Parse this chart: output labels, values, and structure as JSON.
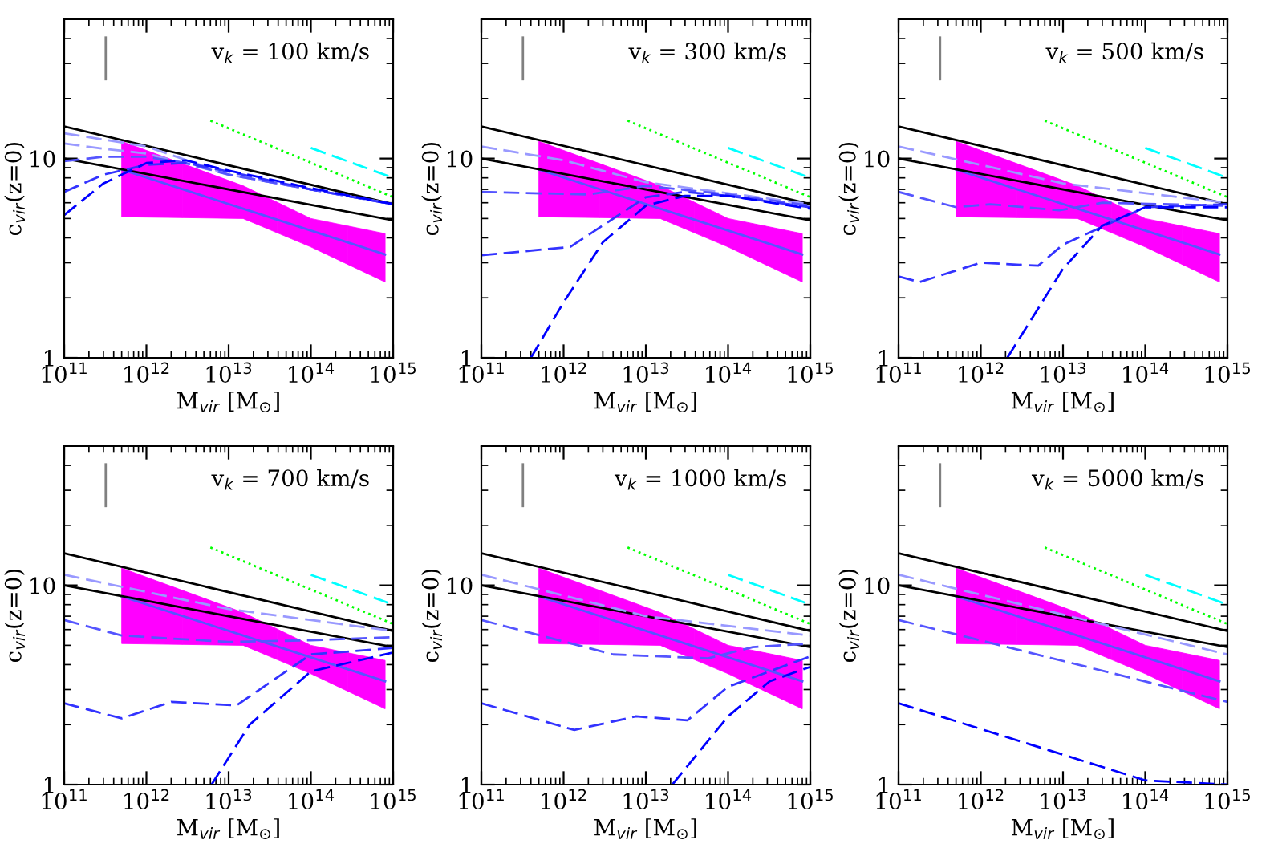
{
  "chart_data": [
    {
      "type": "line",
      "annotations": [
        "v$_{k}$ = 100 km/s"
      ],
      "xlabel": "M$_{vir}$ [M$_{⊙}$]",
      "ylabel": "c$_{vir}$(z=0)",
      "log": "xy",
      "xlim": [
        100000000000.0,
        1000000000000000.0
      ],
      "ylim": [
        1,
        50
      ],
      "xticks": [
        {
          "value": 100000000000.0,
          "label": "10$^{11}$"
        },
        {
          "value": 1000000000000.0,
          "label": "10$^{12}$"
        },
        {
          "value": 10000000000000.0,
          "label": "10$^{13}$"
        },
        {
          "value": 100000000000000.0,
          "label": "10$^{14}$"
        },
        {
          "value": 1000000000000000.0,
          "label": "10$^{15}$"
        }
      ],
      "yticks": [
        1,
        10
      ],
      "series": [
        {
          "type": "line",
          "color": "#5555ff",
          "colors": [
            "#ff00ff",
            "#ff00ff",
            "#ff00ff",
            "#ff00ff"
          ],
          "line_style": "solid",
          "x": [
            500000000000.0,
            15000000000000.0,
            100000000000000.0,
            800000000000000.0
          ],
          "values": [
            8.8,
            5.6,
            4.35,
            3.3
          ],
          "lower": [
            5.1,
            5.0,
            3.6,
            2.4
          ],
          "upper": [
            12.2,
            7.3,
            5.0,
            4.2
          ]
        },
        {
          "type": "line",
          "color": "#000000",
          "line_style": "solid",
          "x": [
            100000000000.0,
            1000000000000000.0
          ],
          "values": [
            14.5,
            5.9
          ]
        },
        {
          "type": "line",
          "color": "#000000",
          "line_style": "solid",
          "x": [
            100000000000.0,
            1000000000000000.0
          ],
          "values": [
            10,
            4.9
          ]
        },
        {
          "type": "line",
          "color": "#00ff00",
          "line_style": "dotted",
          "x": [
            6000000000000.0,
            1000000000000000.0
          ],
          "values": [
            15.5,
            6.4
          ]
        },
        {
          "type": "line",
          "color": "#00ffff",
          "line_style": "dashed",
          "x": [
            100000000000000.0,
            1000000000000000.0
          ],
          "values": [
            11.3,
            8.0
          ]
        },
        {
          "type": "line",
          "color": "#9999ff",
          "line_style": "dashed",
          "x": [
            100000000000.0,
            1000000000000.0,
            10000000000000.0,
            100000000000000.0,
            1000000000000000.0
          ],
          "values": [
            13.4,
            11.5,
            8.3,
            7.0,
            5.9
          ]
        },
        {
          "type": "line",
          "color": "#9999ff",
          "line_style": "dashed",
          "x": [
            100000000000.0,
            300000000000.0,
            1000000000000.0,
            10000000000000.0,
            100000000000000.0,
            1000000000000000.0
          ],
          "values": [
            11.9,
            11.2,
            10.6,
            8.3,
            7.0,
            5.9
          ]
        },
        {
          "type": "line",
          "color": "#5555ff",
          "line_style": "dashed",
          "x": [
            100000000000.0,
            300000000000.0,
            1000000000000.0,
            3000000000000.0,
            10000000000000.0,
            100000000000000.0,
            1000000000000000.0
          ],
          "values": [
            9.7,
            10.2,
            10.2,
            9.5,
            8.3,
            7.0,
            5.9
          ]
        },
        {
          "type": "line",
          "color": "#3333ff",
          "line_style": "dashed",
          "x": [
            100000000000.0,
            300000000000.0,
            1000000000000.0,
            3000000000000.0,
            10000000000000.0,
            100000000000000.0,
            1000000000000000.0
          ],
          "values": [
            6.8,
            8.3,
            9.3,
            9.5,
            8.6,
            7.0,
            5.9
          ]
        },
        {
          "type": "line",
          "color": "#0000ff",
          "line_style": "dashed",
          "x": [
            100000000000.0,
            300000000000.0,
            1000000000000.0,
            3000000000000.0,
            10000000000000.0,
            100000000000000.0,
            1000000000000000.0
          ],
          "values": [
            5.2,
            7.5,
            9.5,
            9.8,
            8.7,
            7.1,
            5.9
          ]
        },
        {
          "type": "line",
          "color": "#808080",
          "line_style": "solid",
          "x": [
            320000000000.0,
            320000000000.0
          ],
          "values": [
            25,
            40.5
          ]
        }
      ]
    },
    {
      "type": "line",
      "annotations": [
        "v$_{k}$ = 300 km/s"
      ],
      "xlabel": "M$_{vir}$ [M$_{⊙}$]",
      "ylabel": "c$_{vir}$(z=0)",
      "log": "xy",
      "xlim": [
        100000000000.0,
        1000000000000000.0
      ],
      "ylim": [
        1,
        50
      ],
      "xticks": [
        {
          "value": 100000000000.0,
          "label": "10$^{11}$"
        },
        {
          "value": 1000000000000.0,
          "label": "10$^{12}$"
        },
        {
          "value": 10000000000000.0,
          "label": "10$^{13}$"
        },
        {
          "value": 100000000000000.0,
          "label": "10$^{14}$"
        },
        {
          "value": 1000000000000000.0,
          "label": "10$^{15}$"
        }
      ],
      "yticks": [
        1,
        10
      ],
      "series": [
        {
          "type": "line",
          "color": "#5555ff",
          "colors": [
            "#ff00ff",
            "#ff00ff",
            "#ff00ff",
            "#ff00ff"
          ],
          "line_style": "solid",
          "x": [
            500000000000.0,
            15000000000000.0,
            100000000000000.0,
            800000000000000.0
          ],
          "values": [
            8.8,
            5.6,
            4.35,
            3.3
          ],
          "lower": [
            5.1,
            5.0,
            3.6,
            2.4
          ],
          "upper": [
            12.2,
            7.3,
            5.0,
            4.2
          ]
        },
        {
          "type": "line",
          "color": "#000000",
          "line_style": "solid",
          "x": [
            100000000000.0,
            1000000000000000.0
          ],
          "values": [
            14.5,
            5.9
          ]
        },
        {
          "type": "line",
          "color": "#000000",
          "line_style": "solid",
          "x": [
            100000000000.0,
            1000000000000000.0
          ],
          "values": [
            10,
            4.9
          ]
        },
        {
          "type": "line",
          "color": "#00ff00",
          "line_style": "dotted",
          "x": [
            6000000000000.0,
            1000000000000000.0
          ],
          "values": [
            15.5,
            6.4
          ]
        },
        {
          "type": "line",
          "color": "#00ffff",
          "line_style": "dashed",
          "x": [
            100000000000000.0,
            1000000000000000.0
          ],
          "values": [
            11.3,
            8.0
          ]
        },
        {
          "type": "line",
          "color": "#9999ff",
          "line_style": "dashed",
          "x": [
            100000000000.0,
            1000000000000.0,
            10000000000000.0,
            100000000000000.0,
            1000000000000000.0
          ],
          "values": [
            11.5,
            9.8,
            7.6,
            6.7,
            5.9
          ]
        },
        {
          "type": "line",
          "color": "#5555ff",
          "line_style": "dashed",
          "x": [
            100000000000.0,
            2000000000000.0,
            10000000000000.0,
            100000000000000.0,
            1000000000000000.0
          ],
          "values": [
            6.8,
            6.6,
            7.3,
            6.6,
            5.8
          ]
        },
        {
          "type": "line",
          "color": "#3333ff",
          "line_style": "dashed",
          "x": [
            100000000000.0,
            1200000000000.0,
            10000000000000.0,
            30000000000000.0,
            100000000000000.0,
            1000000000000000.0
          ],
          "values": [
            3.27,
            3.6,
            6.4,
            6.8,
            6.5,
            5.7
          ]
        },
        {
          "type": "line",
          "color": "#0000ff",
          "line_style": "dashed",
          "x": [
            400000000000.0,
            1000000000000.0,
            3000000000000.0,
            10000000000000.0,
            30000000000000.0,
            100000000000000.0,
            1000000000000000.0
          ],
          "values": [
            1.0,
            1.9,
            3.8,
            5.8,
            6.5,
            6.5,
            5.6
          ]
        },
        {
          "type": "line",
          "color": "#808080",
          "line_style": "solid",
          "x": [
            320000000000.0,
            320000000000.0
          ],
          "values": [
            25,
            40.5
          ]
        }
      ]
    },
    {
      "type": "line",
      "annotations": [
        "v$_{k}$ = 500 km/s"
      ],
      "xlabel": "M$_{vir}$ [M$_{⊙}$]",
      "ylabel": "c$_{vir}$(z=0)",
      "log": "xy",
      "xlim": [
        100000000000.0,
        1000000000000000.0
      ],
      "ylim": [
        1,
        50
      ],
      "xticks": [
        {
          "value": 100000000000.0,
          "label": "10$^{11}$"
        },
        {
          "value": 1000000000000.0,
          "label": "10$^{12}$"
        },
        {
          "value": 10000000000000.0,
          "label": "10$^{13}$"
        },
        {
          "value": 100000000000000.0,
          "label": "10$^{14}$"
        },
        {
          "value": 1000000000000000.0,
          "label": "10$^{15}$"
        }
      ],
      "yticks": [
        1,
        10
      ],
      "series": [
        {
          "type": "line",
          "color": "#5555ff",
          "colors": [
            "#ff00ff",
            "#ff00ff",
            "#ff00ff",
            "#ff00ff"
          ],
          "line_style": "solid",
          "x": [
            500000000000.0,
            15000000000000.0,
            100000000000000.0,
            800000000000000.0
          ],
          "values": [
            8.8,
            5.6,
            4.35,
            3.3
          ],
          "lower": [
            5.1,
            5.0,
            3.6,
            2.4
          ],
          "upper": [
            12.2,
            7.3,
            5.0,
            4.2
          ]
        },
        {
          "type": "line",
          "color": "#000000",
          "line_style": "solid",
          "x": [
            100000000000.0,
            1000000000000000.0
          ],
          "values": [
            14.5,
            5.9
          ]
        },
        {
          "type": "line",
          "color": "#000000",
          "line_style": "solid",
          "x": [
            100000000000.0,
            1000000000000000.0
          ],
          "values": [
            10,
            4.9
          ]
        },
        {
          "type": "line",
          "color": "#00ff00",
          "line_style": "dotted",
          "x": [
            6000000000000.0,
            1000000000000000.0
          ],
          "values": [
            15.5,
            6.4
          ]
        },
        {
          "type": "line",
          "color": "#00ffff",
          "line_style": "dashed",
          "x": [
            100000000000000.0,
            1000000000000000.0
          ],
          "values": [
            11.3,
            8.0
          ]
        },
        {
          "type": "line",
          "color": "#9999ff",
          "line_style": "dashed",
          "x": [
            100000000000.0,
            10000000000000.0,
            1000000000000000.0
          ],
          "values": [
            11.5,
            7.5,
            6.0
          ]
        },
        {
          "type": "line",
          "color": "#5555ff",
          "line_style": "dashed",
          "x": [
            100000000000.0,
            500000000000.0,
            1300000000000.0,
            9000000000000.0,
            30000000000000.0,
            1000000000000000.0
          ],
          "values": [
            6.8,
            5.7,
            5.9,
            5.5,
            6.0,
            5.8
          ]
        },
        {
          "type": "line",
          "color": "#3333ff",
          "line_style": "dashed",
          "x": [
            100000000000.0,
            180000000000.0,
            1000000000000.0,
            5000000000000.0,
            10000000000000.0,
            100000000000000.0,
            1000000000000000.0
          ],
          "values": [
            2.56,
            2.4,
            3.0,
            2.9,
            3.7,
            5.7,
            5.9
          ]
        },
        {
          "type": "line",
          "color": "#0000ff",
          "line_style": "dashed",
          "x": [
            2100000000000.0,
            10000000000000.0,
            30000000000000.0,
            100000000000000.0,
            1000000000000000.0
          ],
          "values": [
            1.0,
            2.8,
            4.6,
            5.7,
            5.7
          ]
        },
        {
          "type": "line",
          "color": "#808080",
          "line_style": "solid",
          "x": [
            320000000000.0,
            320000000000.0
          ],
          "values": [
            25,
            40.5
          ]
        }
      ]
    },
    {
      "type": "line",
      "annotations": [
        "v$_{k}$ = 700 km/s"
      ],
      "xlabel": "M$_{vir}$ [M$_{⊙}$]",
      "ylabel": "c$_{vir}$(z=0)",
      "log": "xy",
      "xlim": [
        100000000000.0,
        1000000000000000.0
      ],
      "ylim": [
        1,
        50
      ],
      "xticks": [
        {
          "value": 100000000000.0,
          "label": "10$^{11}$"
        },
        {
          "value": 1000000000000.0,
          "label": "10$^{12}$"
        },
        {
          "value": 10000000000000.0,
          "label": "10$^{13}$"
        },
        {
          "value": 100000000000000.0,
          "label": "10$^{14}$"
        },
        {
          "value": 1000000000000000.0,
          "label": "10$^{15}$"
        }
      ],
      "yticks": [
        1,
        10
      ],
      "series": [
        {
          "type": "line",
          "color": "#5555ff",
          "colors": [
            "#ff00ff",
            "#ff00ff",
            "#ff00ff",
            "#ff00ff"
          ],
          "line_style": "solid",
          "x": [
            500000000000.0,
            15000000000000.0,
            100000000000000.0,
            800000000000000.0
          ],
          "values": [
            8.8,
            5.6,
            4.35,
            3.3
          ],
          "lower": [
            5.1,
            5.0,
            3.6,
            2.4
          ],
          "upper": [
            12.2,
            7.3,
            5.0,
            4.2
          ]
        },
        {
          "type": "line",
          "color": "#000000",
          "line_style": "solid",
          "x": [
            100000000000.0,
            1000000000000000.0
          ],
          "values": [
            14.5,
            5.9
          ]
        },
        {
          "type": "line",
          "color": "#000000",
          "line_style": "solid",
          "x": [
            100000000000.0,
            1000000000000000.0
          ],
          "values": [
            10,
            4.9
          ]
        },
        {
          "type": "line",
          "color": "#00ff00",
          "line_style": "dotted",
          "x": [
            6000000000000.0,
            1000000000000000.0
          ],
          "values": [
            15.5,
            6.4
          ]
        },
        {
          "type": "line",
          "color": "#00ffff",
          "line_style": "dashed",
          "x": [
            100000000000000.0,
            1000000000000000.0
          ],
          "values": [
            11.3,
            8.0
          ]
        },
        {
          "type": "line",
          "color": "#9999ff",
          "line_style": "dashed",
          "x": [
            100000000000.0,
            10000000000000.0,
            1000000000000000.0
          ],
          "values": [
            11.3,
            7.6,
            5.9
          ]
        },
        {
          "type": "line",
          "color": "#5555ff",
          "line_style": "dashed",
          "x": [
            100000000000.0,
            500000000000.0,
            10000000000000.0,
            100000000000000.0,
            1000000000000000.0
          ],
          "values": [
            6.7,
            5.6,
            5.2,
            5.3,
            5.5
          ]
        },
        {
          "type": "line",
          "color": "#3333ff",
          "line_style": "dashed",
          "x": [
            100000000000.0,
            500000000000.0,
            2000000000000.0,
            12500000000000.0,
            100000000000000.0,
            1000000000000000.0
          ],
          "values": [
            2.56,
            2.15,
            2.6,
            2.5,
            4.5,
            4.85
          ]
        },
        {
          "type": "line",
          "color": "#0000ff",
          "line_style": "dashed",
          "x": [
            6200000000000.0,
            18000000000000.0,
            100000000000000.0,
            1000000000000000.0
          ],
          "values": [
            1.0,
            2.0,
            3.7,
            4.6
          ]
        },
        {
          "type": "line",
          "color": "#808080",
          "line_style": "solid",
          "x": [
            320000000000.0,
            320000000000.0
          ],
          "values": [
            25,
            40.5
          ]
        }
      ]
    },
    {
      "type": "line",
      "annotations": [
        "v$_{k}$ = 1000 km/s"
      ],
      "xlabel": "M$_{vir}$ [M$_{⊙}$]",
      "ylabel": "c$_{vir}$(z=0)",
      "log": "xy",
      "xlim": [
        100000000000.0,
        1000000000000000.0
      ],
      "ylim": [
        1,
        50
      ],
      "xticks": [
        {
          "value": 100000000000.0,
          "label": "10$^{11}$"
        },
        {
          "value": 1000000000000.0,
          "label": "10$^{12}$"
        },
        {
          "value": 10000000000000.0,
          "label": "10$^{13}$"
        },
        {
          "value": 100000000000000.0,
          "label": "10$^{14}$"
        },
        {
          "value": 1000000000000000.0,
          "label": "10$^{15}$"
        }
      ],
      "yticks": [
        1,
        10
      ],
      "series": [
        {
          "type": "line",
          "color": "#5555ff",
          "colors": [
            "#ff00ff",
            "#ff00ff",
            "#ff00ff",
            "#ff00ff"
          ],
          "line_style": "solid",
          "x": [
            500000000000.0,
            15000000000000.0,
            100000000000000.0,
            800000000000000.0
          ],
          "values": [
            8.8,
            5.6,
            4.35,
            3.3
          ],
          "lower": [
            5.1,
            5.0,
            3.6,
            2.4
          ],
          "upper": [
            12.2,
            7.3,
            5.0,
            4.2
          ]
        },
        {
          "type": "line",
          "color": "#000000",
          "line_style": "solid",
          "x": [
            100000000000.0,
            1000000000000000.0
          ],
          "values": [
            14.5,
            5.9
          ]
        },
        {
          "type": "line",
          "color": "#000000",
          "line_style": "solid",
          "x": [
            100000000000.0,
            1000000000000000.0
          ],
          "values": [
            10,
            4.9
          ]
        },
        {
          "type": "line",
          "color": "#00ff00",
          "line_style": "dotted",
          "x": [
            6000000000000.0,
            1000000000000000.0
          ],
          "values": [
            15.5,
            6.4
          ]
        },
        {
          "type": "line",
          "color": "#00ffff",
          "line_style": "dashed",
          "x": [
            100000000000000.0,
            1000000000000000.0
          ],
          "values": [
            11.3,
            8.0
          ]
        },
        {
          "type": "line",
          "color": "#9999ff",
          "line_style": "dashed",
          "x": [
            100000000000.0,
            10000000000000.0,
            1000000000000000.0
          ],
          "values": [
            11.3,
            7.0,
            5.6
          ]
        },
        {
          "type": "line",
          "color": "#5555ff",
          "line_style": "dashed",
          "x": [
            100000000000.0,
            4000000000000.0,
            57000000000000.0,
            200000000000000.0,
            1000000000000000.0
          ],
          "values": [
            6.7,
            4.5,
            4.3,
            4.9,
            5.1
          ]
        },
        {
          "type": "line",
          "color": "#3333ff",
          "line_style": "dashed",
          "x": [
            100000000000.0,
            1350000000000.0,
            7600000000000.0,
            32000000000000.0,
            100000000000000.0,
            1000000000000000.0
          ],
          "values": [
            2.56,
            1.88,
            2.2,
            2.1,
            3.1,
            4.4
          ]
        },
        {
          "type": "line",
          "color": "#0000ff",
          "line_style": "dashed",
          "x": [
            21000000000000.0,
            100000000000000.0,
            320000000000000.0,
            1000000000000000.0
          ],
          "values": [
            1.0,
            2.2,
            3.3,
            3.9
          ]
        },
        {
          "type": "line",
          "color": "#808080",
          "line_style": "solid",
          "x": [
            320000000000.0,
            320000000000.0
          ],
          "values": [
            25,
            40.5
          ]
        }
      ]
    },
    {
      "type": "line",
      "annotations": [
        "v$_{k}$ = 5000 km/s"
      ],
      "xlabel": "M$_{vir}$ [M$_{⊙}$]",
      "ylabel": "c$_{vir}$(z=0)",
      "log": "xy",
      "xlim": [
        100000000000.0,
        1000000000000000.0
      ],
      "ylim": [
        1,
        50
      ],
      "xticks": [
        {
          "value": 100000000000.0,
          "label": "10$^{11}$"
        },
        {
          "value": 1000000000000.0,
          "label": "10$^{12}$"
        },
        {
          "value": 10000000000000.0,
          "label": "10$^{13}$"
        },
        {
          "value": 100000000000000.0,
          "label": "10$^{14}$"
        },
        {
          "value": 1000000000000000.0,
          "label": "10$^{15}$"
        }
      ],
      "yticks": [
        1,
        10
      ],
      "series": [
        {
          "type": "line",
          "color": "#5555ff",
          "colors": [
            "#ff00ff",
            "#ff00ff",
            "#ff00ff",
            "#ff00ff"
          ],
          "line_style": "solid",
          "x": [
            500000000000.0,
            15000000000000.0,
            100000000000000.0,
            800000000000000.0
          ],
          "values": [
            8.8,
            5.6,
            4.35,
            3.3
          ],
          "lower": [
            5.1,
            5.0,
            3.6,
            2.4
          ],
          "upper": [
            12.2,
            7.3,
            5.0,
            4.2
          ]
        },
        {
          "type": "line",
          "color": "#000000",
          "line_style": "solid",
          "x": [
            100000000000.0,
            1000000000000000.0
          ],
          "values": [
            14.5,
            5.9
          ]
        },
        {
          "type": "line",
          "color": "#000000",
          "line_style": "solid",
          "x": [
            100000000000.0,
            1000000000000000.0
          ],
          "values": [
            10,
            4.9
          ]
        },
        {
          "type": "line",
          "color": "#00ff00",
          "line_style": "dotted",
          "x": [
            6000000000000.0,
            1000000000000000.0
          ],
          "values": [
            15.5,
            6.4
          ]
        },
        {
          "type": "line",
          "color": "#00ffff",
          "line_style": "dashed",
          "x": [
            100000000000000.0,
            1000000000000000.0
          ],
          "values": [
            11.3,
            8.0
          ]
        },
        {
          "type": "line",
          "color": "#9999ff",
          "line_style": "dashed",
          "x": [
            100000000000.0,
            1000000000000000.0
          ],
          "values": [
            11.3,
            4.5
          ]
        },
        {
          "type": "line",
          "color": "#5555ff",
          "line_style": "dashed",
          "x": [
            100000000000.0,
            1000000000000000.0
          ],
          "values": [
            6.7,
            2.6
          ]
        },
        {
          "type": "line",
          "color": "#0000ff",
          "line_style": "dashed",
          "x": [
            100000000000.0,
            100000000000000.0,
            1000000000000000.0
          ],
          "values": [
            2.56,
            1.05,
            1.0
          ]
        },
        {
          "type": "line",
          "color": "#808080",
          "line_style": "solid",
          "x": [
            320000000000.0,
            320000000000.0
          ],
          "values": [
            25,
            40.5
          ]
        }
      ]
    }
  ]
}
